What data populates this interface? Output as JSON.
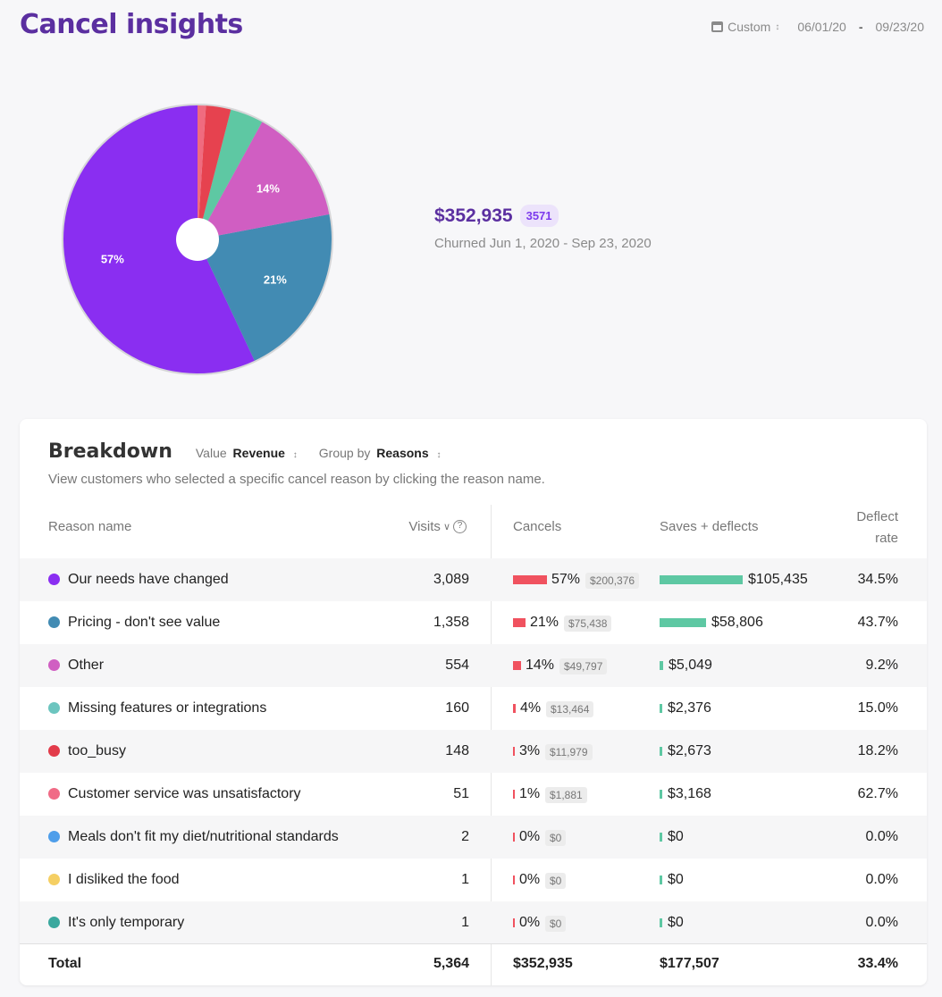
{
  "header": {
    "title": "Cancel insights",
    "range_label": "Custom",
    "start_date": "06/01/20",
    "end_date": "09/23/20",
    "icons": {
      "calendar": "calendar-icon",
      "updown": "updown-chevron-icon"
    }
  },
  "summary": {
    "amount": "$352,935",
    "count": "3571",
    "caption": "Churned Jun 1, 2020 - Sep 23, 2020"
  },
  "chart_data": {
    "type": "pie",
    "slices": [
      {
        "name": "Our needs have changed",
        "value": 57,
        "label": "57%",
        "color": "#8a2ef1"
      },
      {
        "name": "Pricing - don't see value",
        "value": 21,
        "label": "21%",
        "color": "#428bb3"
      },
      {
        "name": "Other",
        "value": 14,
        "label": "14%",
        "color": "#d05ec2"
      },
      {
        "name": "Missing features or integrations",
        "value": 4,
        "label": "",
        "color": "#5ec8a3"
      },
      {
        "name": "too_busy",
        "value": 3,
        "label": "",
        "color": "#e6424f"
      },
      {
        "name": "Customer service was unsatisfactory",
        "value": 1,
        "label": "",
        "color": "#f06b7f"
      }
    ]
  },
  "breakdown": {
    "title": "Breakdown",
    "value_label": "Value",
    "value_selected": "Revenue",
    "group_label": "Group by",
    "group_selected": "Reasons",
    "description": "View customers who selected a specific cancel reason by clicking the reason name.",
    "columns": {
      "reason": "Reason name",
      "visits": "Visits",
      "cancels": "Cancels",
      "saves": "Saves + deflects",
      "deflect_line1": "Deflect",
      "deflect_line2": "rate"
    },
    "colors": {
      "cancel_bar": "#f0525f",
      "save_bar": "#5ec8a3"
    },
    "rows": [
      {
        "reason": "Our needs have changed",
        "color": "#8a2ef1",
        "visits": "3,089",
        "cancel_pct": "57%",
        "cancel_pct_value": 57,
        "cancel_amount": "$200,376",
        "saves": "$105,435",
        "saves_value": 105435,
        "deflect": "34.5%"
      },
      {
        "reason": "Pricing - don't see value",
        "color": "#428bb3",
        "visits": "1,358",
        "cancel_pct": "21%",
        "cancel_pct_value": 21,
        "cancel_amount": "$75,438",
        "saves": "$58,806",
        "saves_value": 58806,
        "deflect": "43.7%"
      },
      {
        "reason": "Other",
        "color": "#d05ec2",
        "visits": "554",
        "cancel_pct": "14%",
        "cancel_pct_value": 14,
        "cancel_amount": "$49,797",
        "saves": "$5,049",
        "saves_value": 5049,
        "deflect": "9.2%"
      },
      {
        "reason": "Missing features or integrations",
        "color": "#6cc5bf",
        "visits": "160",
        "cancel_pct": "4%",
        "cancel_pct_value": 4,
        "cancel_amount": "$13,464",
        "saves": "$2,376",
        "saves_value": 2376,
        "deflect": "15.0%"
      },
      {
        "reason": "too_busy",
        "color": "#e23b4a",
        "visits": "148",
        "cancel_pct": "3%",
        "cancel_pct_value": 3,
        "cancel_amount": "$11,979",
        "saves": "$2,673",
        "saves_value": 2673,
        "deflect": "18.2%"
      },
      {
        "reason": "Customer service was unsatisfactory",
        "color": "#f06b86",
        "visits": "51",
        "cancel_pct": "1%",
        "cancel_pct_value": 1,
        "cancel_amount": "$1,881",
        "saves": "$3,168",
        "saves_value": 3168,
        "deflect": "62.7%"
      },
      {
        "reason": "Meals don't fit my diet/nutritional standards",
        "color": "#4e9eea",
        "visits": "2",
        "cancel_pct": "0%",
        "cancel_pct_value": 0,
        "cancel_amount": "$0",
        "saves": "$0",
        "saves_value": 0,
        "deflect": "0.0%"
      },
      {
        "reason": "I disliked the food",
        "color": "#f5cf63",
        "visits": "1",
        "cancel_pct": "0%",
        "cancel_pct_value": 0,
        "cancel_amount": "$0",
        "saves": "$0",
        "saves_value": 0,
        "deflect": "0.0%"
      },
      {
        "reason": "It's only temporary",
        "color": "#3aa89e",
        "visits": "1",
        "cancel_pct": "0%",
        "cancel_pct_value": 0,
        "cancel_amount": "$0",
        "saves": "$0",
        "saves_value": 0,
        "deflect": "0.0%"
      }
    ],
    "total": {
      "label": "Total",
      "visits": "5,364",
      "cancels": "$352,935",
      "saves": "$177,507",
      "deflect": "33.4%"
    }
  }
}
